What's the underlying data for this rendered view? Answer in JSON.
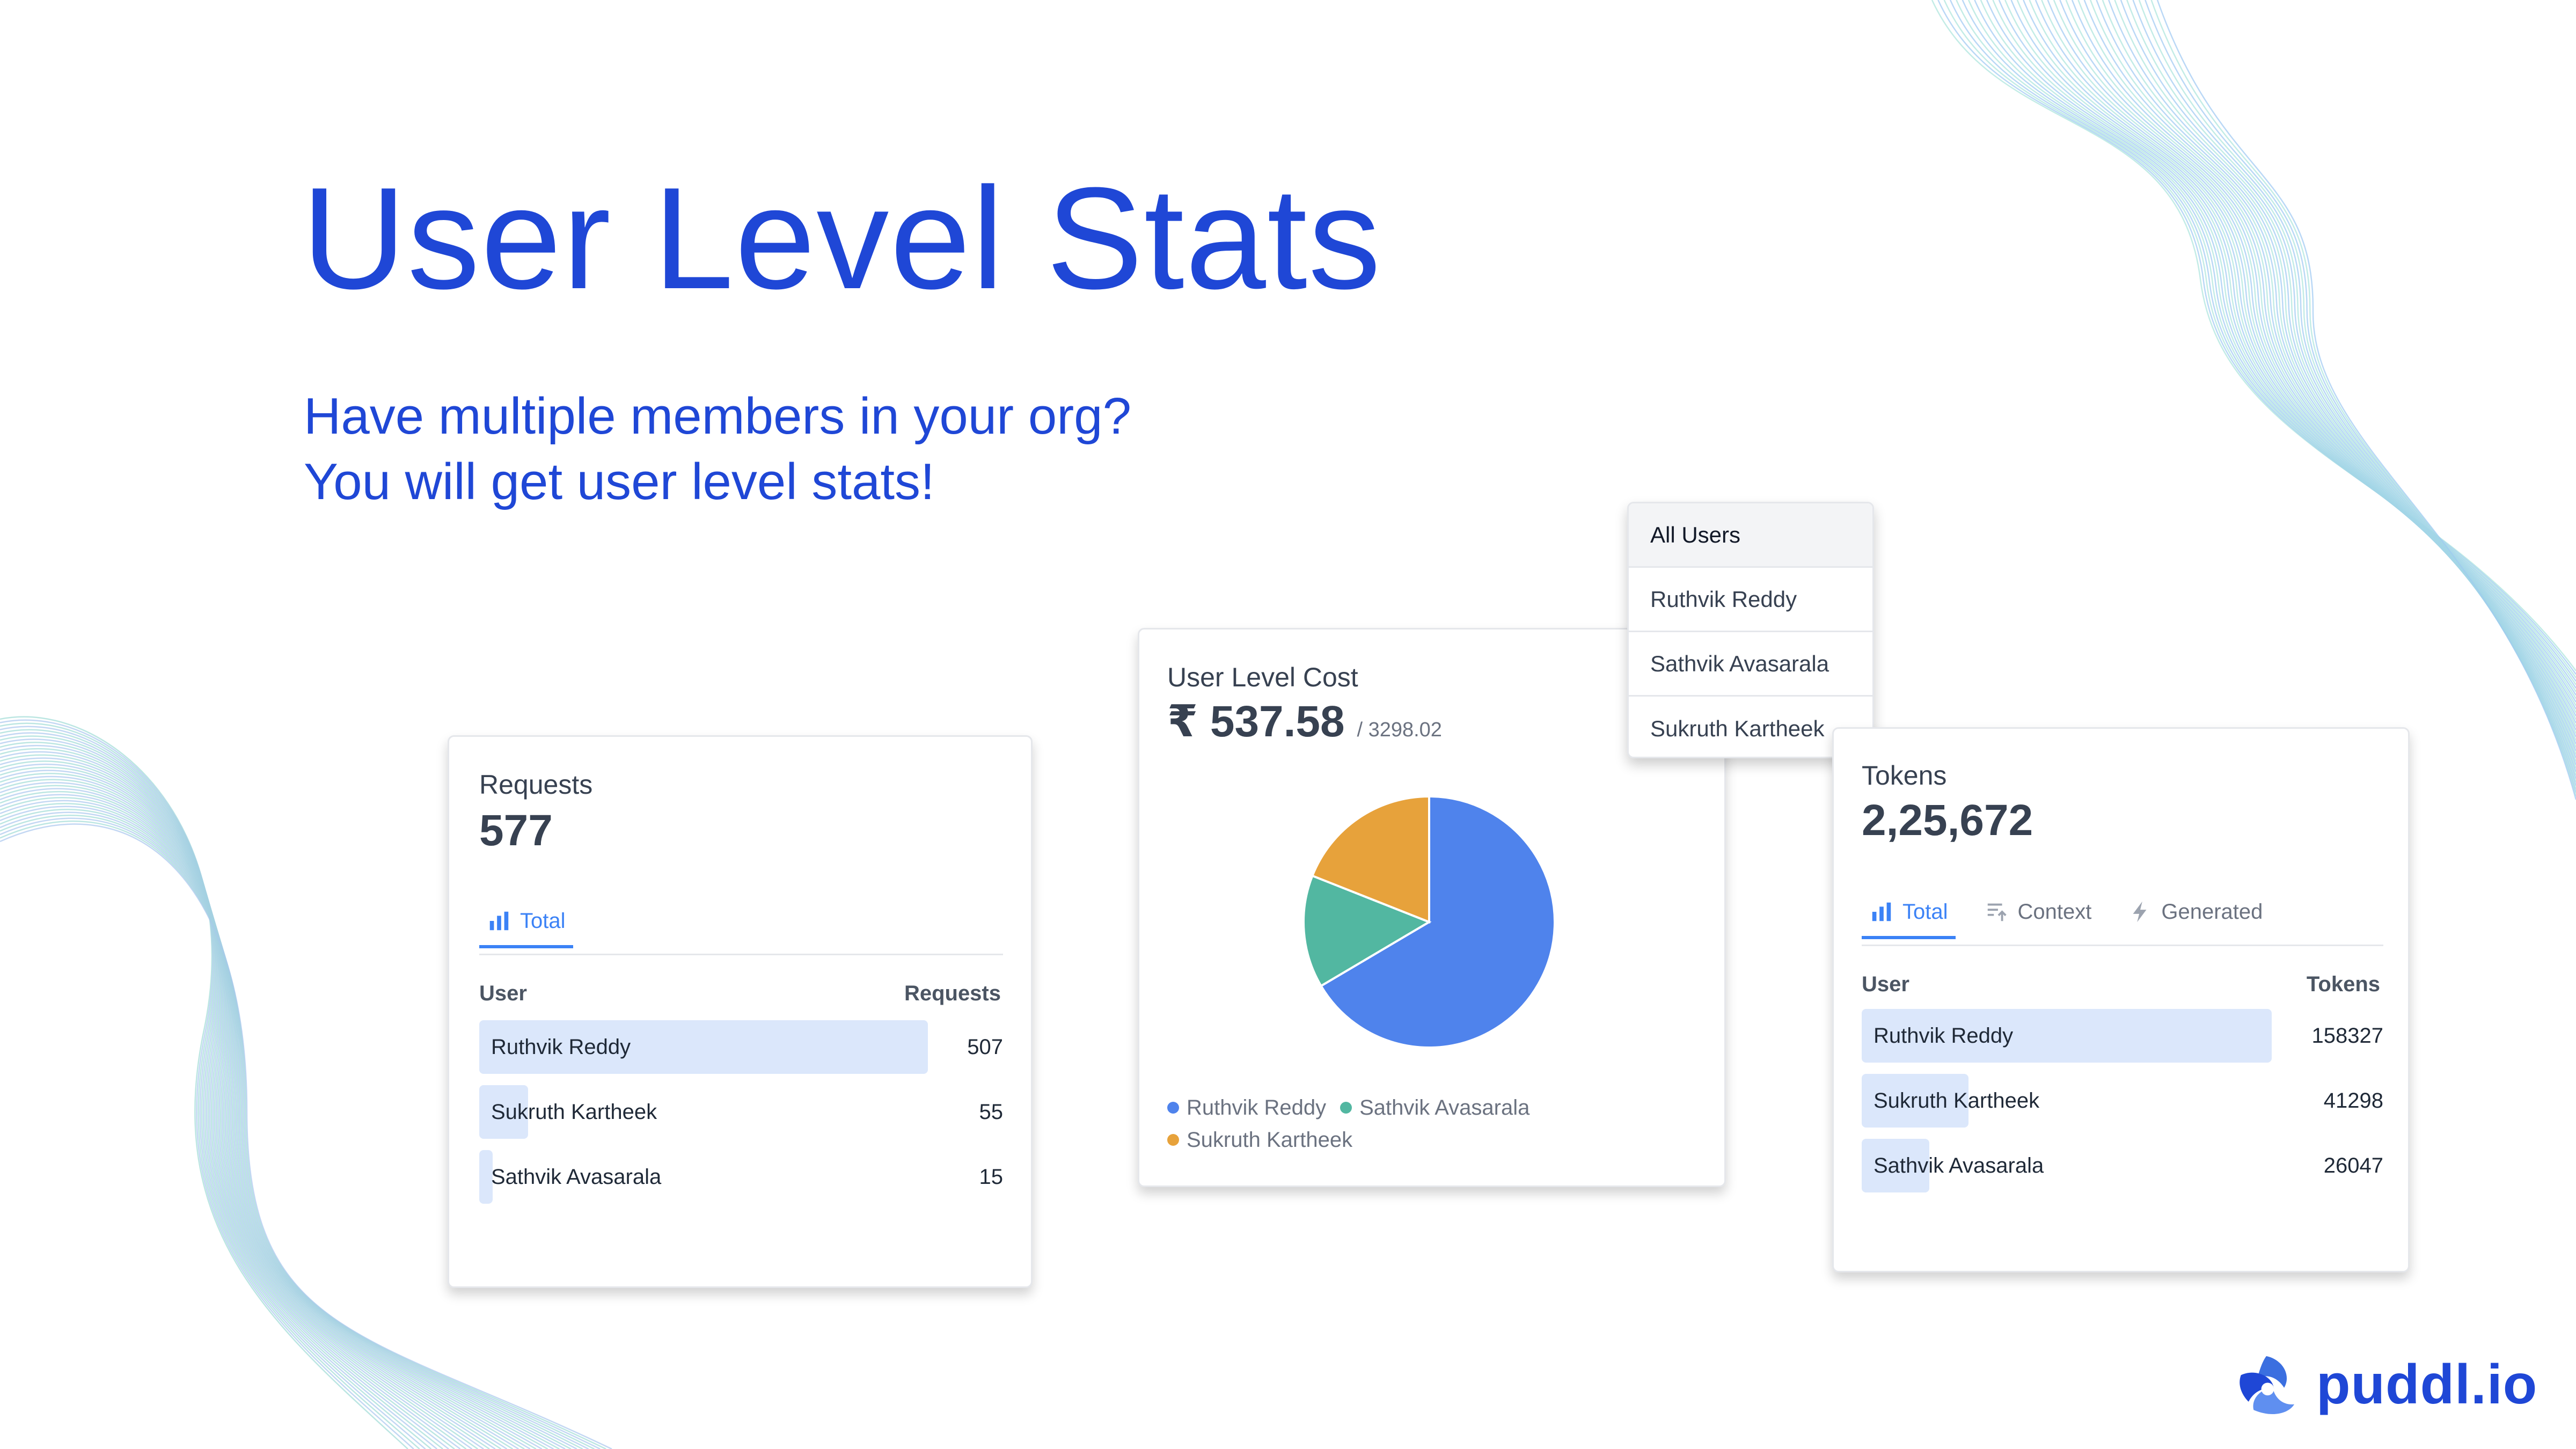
{
  "title": "User Level Stats",
  "subtitle_lines": [
    "Have multiple members in your org?",
    "You will get user level stats!"
  ],
  "colors": {
    "brand": "#1f47d6",
    "accent": "#3b82f6",
    "bar_fill": "#dbe7fb",
    "series": [
      "#4f83ec",
      "#52b7a1",
      "#e7a23b"
    ]
  },
  "requests_card": {
    "label": "Requests",
    "value": "577",
    "tabs": [
      {
        "label": "Total",
        "icon": "bar-chart-icon",
        "active": true
      }
    ],
    "col_user": "User",
    "col_value": "Requests",
    "rows": [
      {
        "name": "Ruthvik Reddy",
        "value": 507,
        "value_text": "507"
      },
      {
        "name": "Sukruth Kartheek",
        "value": 55,
        "value_text": "55"
      },
      {
        "name": "Sathvik Avasarala",
        "value": 15,
        "value_text": "15"
      }
    ]
  },
  "cost_card": {
    "label": "User Level Cost",
    "value": "₹ 537.58",
    "total": "/ 3298.02",
    "legend": [
      "Ruthvik Reddy",
      "Sathvik Avasarala",
      "Sukruth Kartheek"
    ]
  },
  "user_dropdown": {
    "options": [
      "All Users",
      "Ruthvik Reddy",
      "Sathvik Avasarala",
      "Sukruth Kartheek"
    ],
    "selected": "All Users"
  },
  "tokens_card": {
    "label": "Tokens",
    "value": "2,25,672",
    "tabs": [
      {
        "label": "Total",
        "icon": "bar-chart-icon",
        "active": true
      },
      {
        "label": "Context",
        "icon": "context-upload-icon",
        "active": false
      },
      {
        "label": "Generated",
        "icon": "lightning-icon",
        "active": false
      }
    ],
    "col_user": "User",
    "col_value": "Tokens",
    "rows": [
      {
        "name": "Ruthvik Reddy",
        "value": 158327,
        "value_text": "158327"
      },
      {
        "name": "Sukruth Kartheek",
        "value": 41298,
        "value_text": "41298"
      },
      {
        "name": "Sathvik Avasarala",
        "value": 26047,
        "value_text": "26047"
      }
    ]
  },
  "chart_data": {
    "type": "pie",
    "categories": [
      "Ruthvik Reddy",
      "Sathvik Avasarala",
      "Sukruth Kartheek"
    ],
    "values": [
      66.5,
      14.5,
      19.0
    ]
  },
  "brand": {
    "name": "puddl.io",
    "logo_icon": "puddl-logo-icon"
  }
}
